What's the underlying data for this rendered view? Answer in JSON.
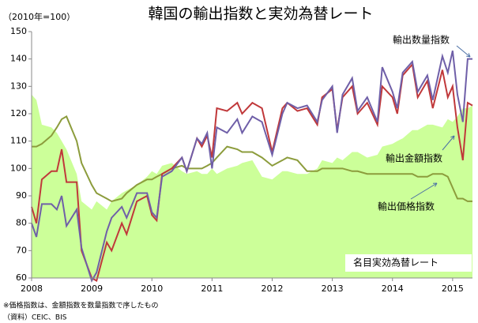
{
  "chart_data": {
    "type": "line",
    "title": "韓国の輸出指数と実効為替レート",
    "subtitle": "（2010年=100）",
    "notes": [
      "※価格指数は、金額指数を数量指数で序したもの",
      "（資料）CEIC、BIS"
    ],
    "x": [
      2008,
      2008.08,
      2008.17,
      2008.33,
      2008.42,
      2008.5,
      2008.58,
      2008.75,
      2008.83,
      2009,
      2009.08,
      2009.25,
      2009.33,
      2009.5,
      2009.58,
      2009.75,
      2009.92,
      2010,
      2010.08,
      2010.17,
      2010.33,
      2010.5,
      2010.58,
      2010.75,
      2010.83,
      2010.92,
      2011,
      2011.08,
      2011.25,
      2011.42,
      2011.5,
      2011.67,
      2011.83,
      2012,
      2012.17,
      2012.25,
      2012.42,
      2012.58,
      2012.75,
      2012.83,
      2013,
      2013.08,
      2013.17,
      2013.33,
      2013.42,
      2013.58,
      2013.75,
      2013.83,
      2014,
      2014.08,
      2014.17,
      2014.33,
      2014.42,
      2014.58,
      2014.67,
      2014.83,
      2014.92,
      2015,
      2015.08,
      2015.17,
      2015.25,
      2015.33
    ],
    "series": [
      {
        "name": "名目実効為替レート",
        "color": "#ccff99",
        "fill": true,
        "values": [
          127,
          125,
          116,
          115,
          113,
          110,
          107,
          98,
          88,
          85,
          88,
          85,
          88,
          91,
          92,
          94,
          97,
          99,
          98,
          101,
          102,
          99,
          98,
          99,
          98,
          98,
          100,
          98,
          100,
          101,
          102,
          103,
          97,
          96,
          99,
          99,
          98,
          98,
          100,
          103,
          102,
          104,
          103,
          106,
          106,
          104,
          105,
          108,
          109,
          110,
          111,
          114,
          114,
          116,
          116,
          115,
          118,
          117,
          119,
          122,
          122,
          123
        ]
      },
      {
        "name": "輸出価格指数",
        "color": "#8c9c3c",
        "values": [
          108,
          108,
          109,
          112,
          115,
          118,
          119,
          110,
          102,
          94,
          91,
          89,
          88,
          89,
          91,
          94,
          96,
          96,
          97,
          98,
          100,
          101,
          100,
          100,
          100,
          101,
          102,
          104,
          108,
          107,
          106,
          106,
          104,
          101,
          103,
          104,
          103,
          99,
          99,
          100,
          100,
          100,
          100,
          99,
          99,
          98,
          98,
          98,
          98,
          98,
          98,
          98,
          97,
          97,
          98,
          98,
          97,
          93,
          89,
          89,
          88,
          88
        ]
      },
      {
        "name": "輸出金額指数",
        "color": "#c0383a",
        "values": [
          86,
          80,
          96,
          99,
          99,
          107,
          95,
          95,
          70,
          60,
          59,
          73,
          70,
          80,
          76,
          88,
          90,
          83,
          81,
          98,
          100,
          104,
          99,
          111,
          108,
          112,
          104,
          122,
          121,
          124,
          120,
          124,
          122,
          106,
          122,
          124,
          121,
          122,
          116,
          126,
          129,
          114,
          126,
          130,
          120,
          124,
          116,
          130,
          126,
          120,
          134,
          138,
          126,
          132,
          122,
          136,
          126,
          130,
          115,
          103,
          124,
          123
        ]
      },
      {
        "name": "輸出数量指数",
        "color": "#6f5fa8",
        "values": [
          80,
          75,
          87,
          87,
          85,
          90,
          79,
          85,
          71,
          59,
          62,
          77,
          82,
          86,
          82,
          91,
          91,
          84,
          82,
          97,
          99,
          104,
          99,
          111,
          109,
          113,
          100,
          115,
          113,
          118,
          113,
          119,
          117,
          105,
          120,
          124,
          122,
          123,
          117,
          125,
          130,
          113,
          127,
          133,
          121,
          126,
          117,
          137,
          128,
          122,
          135,
          139,
          128,
          134,
          125,
          141,
          135,
          143,
          127,
          117,
          140,
          140
        ]
      }
    ],
    "xlim": [
      2008,
      2015.33
    ],
    "xticks": [
      2008,
      2009,
      2010,
      2011,
      2012,
      2013,
      2014,
      2015
    ],
    "ylim": [
      60,
      150
    ],
    "yticks": [
      60,
      70,
      80,
      90,
      100,
      110,
      120,
      130,
      140,
      150
    ],
    "grid": false
  }
}
